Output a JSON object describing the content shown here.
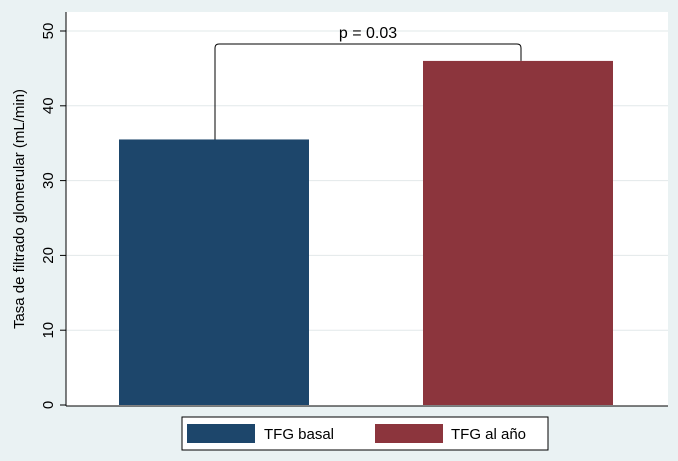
{
  "chart_data": {
    "type": "bar",
    "categories": [
      "TFG basal",
      "TFG al año"
    ],
    "values": [
      35.5,
      46.0
    ],
    "colors": [
      "#1d466b",
      "#8c353d"
    ],
    "title": "",
    "xlabel": "",
    "ylabel": "Tasa de filtrado glomerular (mL/min)",
    "ylim": [
      0,
      50
    ],
    "yticks": [
      0,
      10,
      20,
      30,
      40,
      50
    ],
    "grid": "horizontal",
    "legend": {
      "position": "bottom",
      "entries": [
        {
          "label": "TFG basal",
          "color": "#1d466b"
        },
        {
          "label": "TFG al año",
          "color": "#8c353d"
        }
      ]
    },
    "annotations": [
      {
        "text": "p = 0.03",
        "type": "significance-bracket",
        "between": [
          "TFG basal",
          "TFG al año"
        ]
      }
    ]
  }
}
